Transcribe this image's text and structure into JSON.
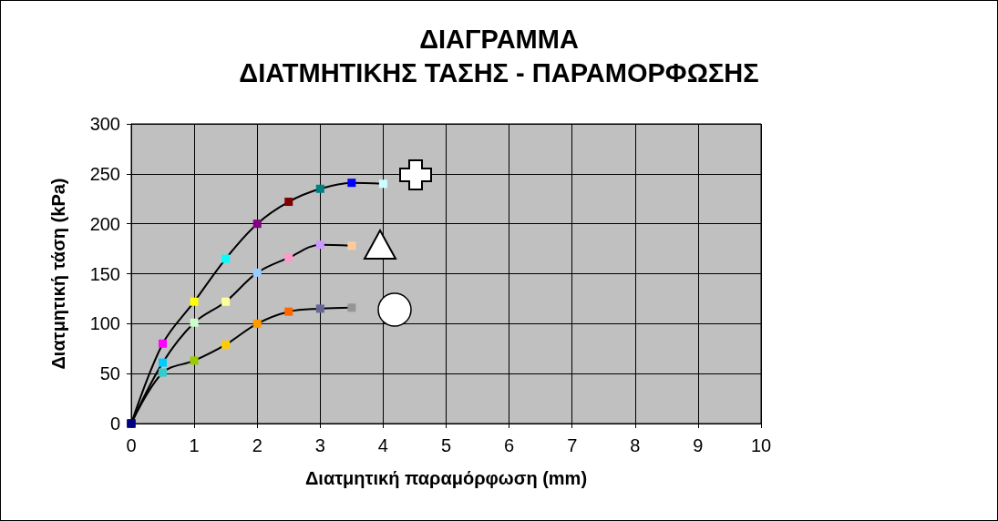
{
  "chart_data": {
    "type": "line",
    "title": "ΔΙΑΓΡΑΜΜΑ\nΔΙΑΤΜΗΤΙΚΗΣ ΤΑΣΗΣ - ΠΑΡΑΜΟΡΦΩΣΗΣ",
    "xlabel": "Διατμητική παραμόρφωση (mm)",
    "ylabel": "Διατμητική τάση (kPa)",
    "series": [
      {
        "color": "#000000",
        "x": [
          0,
          0.5,
          1,
          1.5,
          2,
          2.5,
          3,
          3.5,
          4
        ],
        "values": [
          0,
          80,
          122,
          165,
          200,
          222,
          235,
          241,
          240
        ],
        "colors": [
          "#000080",
          "#ff00ff",
          "#ffff00",
          "#00ffff",
          "#800080",
          "#800000",
          "#008080",
          "#0000ff",
          "#ccffff"
        ]
      },
      {
        "color": "#000000",
        "x": [
          0,
          0.5,
          1,
          1.5,
          2,
          2.5,
          3,
          3.5
        ],
        "values": [
          0,
          61,
          101,
          122,
          151,
          166,
          179,
          178
        ],
        "colors": [
          "#000080",
          "#00ccff",
          "#ccffcc",
          "#ffff99",
          "#99ccff",
          "#ff99cc",
          "#cc99ff",
          "#ffcc99"
        ]
      },
      {
        "color": "#000000",
        "x": [
          0,
          0.5,
          1,
          1.5,
          2,
          2.5,
          3,
          3.5
        ],
        "values": [
          0,
          51,
          63,
          79,
          100,
          112,
          115,
          116
        ],
        "colors": [
          "#000080",
          "#33cccc",
          "#99cc00",
          "#ffcc00",
          "#ff9900",
          "#ff6600",
          "#666699",
          "#969696"
        ]
      }
    ],
    "xlim": [
      0,
      10
    ],
    "xticks": [
      0,
      1,
      2,
      3,
      4,
      5,
      6,
      7,
      8,
      9,
      10
    ],
    "ylim": [
      0,
      300
    ],
    "yticks": [
      0,
      50,
      100,
      150,
      200,
      250,
      300
    ],
    "grid": true,
    "marker": "square",
    "line_style": "solid"
  }
}
